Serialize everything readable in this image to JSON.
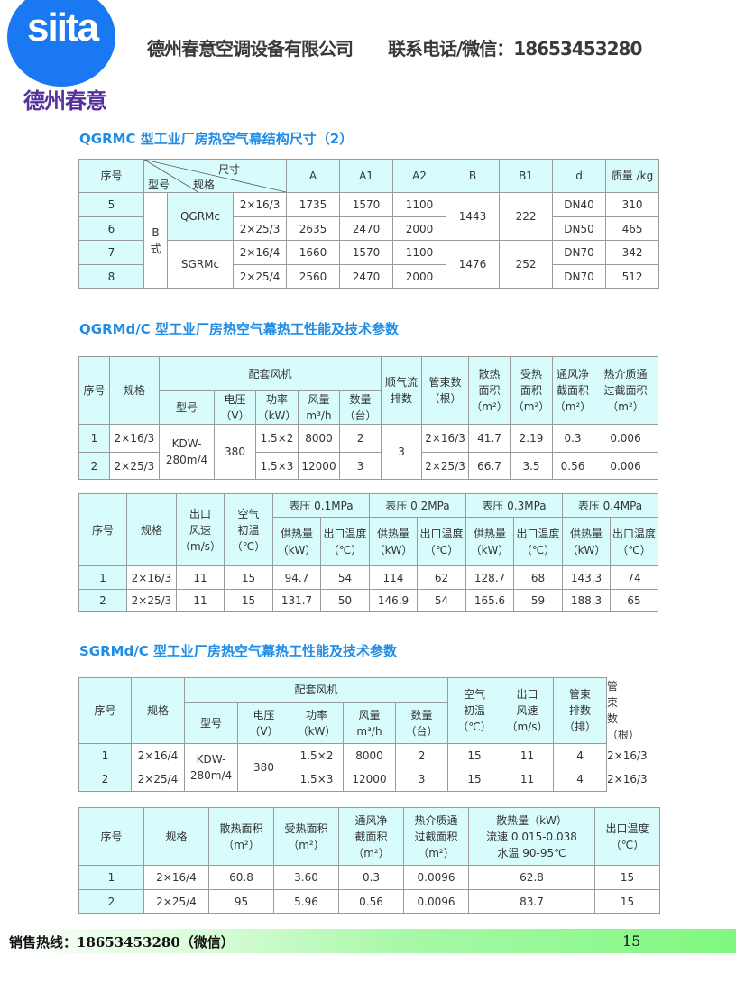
{
  "header": {
    "logo_text": "siita",
    "logo_subtitle": "德州春意",
    "company": "德州春意空调设备有限公司",
    "contact": "联系电话/微信：18653453280",
    "brand_color": "#1a78f2"
  },
  "sections": [
    {
      "title": "QGRMC 型工业厂房热空气幕结构尺寸（2）"
    },
    {
      "title": "QGRMd/C 型工业厂房热空气幕热工性能及技术参数"
    },
    {
      "title": "SGRMd/C 型工业厂房热空气幕热工性能及技术参数"
    }
  ],
  "tables": [
    {
      "rows": [
        [
          {
            "t": "序号",
            "h": 1
          },
          {
            "diag": [
              "尺寸",
              "型号",
              "规格"
            ],
            "cs": 3,
            "h": 1
          },
          {
            "t": "A",
            "h": 1
          },
          {
            "t": "A1",
            "h": 1
          },
          {
            "t": "A2",
            "h": 1
          },
          {
            "t": "B",
            "h": 1
          },
          {
            "t": "B1",
            "h": 1
          },
          {
            "t": "d",
            "h": 1
          },
          {
            "t": "质量 /kg",
            "h": 1
          }
        ],
        [
          {
            "t": "5",
            "c": 1
          },
          {
            "t": "B\n式",
            "rs": 4
          },
          {
            "t": "QGRMc",
            "rs": 2,
            "c": 1
          },
          {
            "t": "2×16/3"
          },
          {
            "t": "1735"
          },
          {
            "t": "1570"
          },
          {
            "t": "1100"
          },
          {
            "t": "1443",
            "rs": 2
          },
          {
            "t": "222",
            "rs": 2
          },
          {
            "t": "DN40"
          },
          {
            "t": "310"
          }
        ],
        [
          {
            "t": "6",
            "c": 1
          },
          {
            "t": "2×25/3"
          },
          {
            "t": "2635"
          },
          {
            "t": "2470"
          },
          {
            "t": "2000"
          },
          {
            "t": "DN50"
          },
          {
            "t": "465"
          }
        ],
        [
          {
            "t": "7",
            "c": 1
          },
          {
            "t": "SGRMc",
            "rs": 2
          },
          {
            "t": "2×16/4"
          },
          {
            "t": "1660"
          },
          {
            "t": "1570"
          },
          {
            "t": "1100"
          },
          {
            "t": "1476",
            "rs": 2
          },
          {
            "t": "252",
            "rs": 2
          },
          {
            "t": "DN70"
          },
          {
            "t": "342"
          }
        ],
        [
          {
            "t": "8",
            "c": 1
          },
          {
            "t": "2×25/4"
          },
          {
            "t": "2560"
          },
          {
            "t": "2470"
          },
          {
            "t": "2000"
          },
          {
            "t": "DN70"
          },
          {
            "t": "512"
          }
        ]
      ]
    },
    {
      "rows": [
        [
          {
            "t": "序号",
            "rs": 2,
            "h": 1
          },
          {
            "t": "规格",
            "rs": 2,
            "h": 1
          },
          {
            "t": "配套风机",
            "cs": 5,
            "h": 1
          },
          {
            "t": "顺气流\n排数",
            "rs": 2,
            "h": 1
          },
          {
            "t": "管束数\n（根）",
            "rs": 2,
            "h": 1
          },
          {
            "t": "散热\n面积\n（m²）",
            "rs": 2,
            "h": 1
          },
          {
            "t": "受热\n面积\n（m²）",
            "rs": 2,
            "h": 1
          },
          {
            "t": "通风净\n截面积\n（m²）",
            "rs": 2,
            "h": 1
          },
          {
            "t": "热介质通\n过截面积\n（m²）",
            "rs": 2,
            "h": 1
          }
        ],
        [
          {
            "t": "型号",
            "h": 1
          },
          {
            "t": "电压\n（V）",
            "h": 1
          },
          {
            "t": "功率\n（kW）",
            "h": 1
          },
          {
            "t": "风量\nm³/h",
            "h": 1
          },
          {
            "t": "数量\n（台）",
            "h": 1
          }
        ],
        [
          {
            "t": "1",
            "c": 1
          },
          {
            "t": "2×16/3"
          },
          {
            "t": "KDW-\n280m/4",
            "rs": 2
          },
          {
            "t": "380",
            "rs": 2
          },
          {
            "t": "1.5×2"
          },
          {
            "t": "8000"
          },
          {
            "t": "2"
          },
          {
            "t": "3",
            "rs": 2
          },
          {
            "t": "2×16/3"
          },
          {
            "t": "41.7"
          },
          {
            "t": "2.19"
          },
          {
            "t": "0.3"
          },
          {
            "t": "0.006"
          }
        ],
        [
          {
            "t": "2",
            "c": 1
          },
          {
            "t": "2×25/3"
          },
          {
            "t": "1.5×3"
          },
          {
            "t": "12000"
          },
          {
            "t": "3"
          },
          {
            "t": "2×25/3"
          },
          {
            "t": "66.7"
          },
          {
            "t": "3.5"
          },
          {
            "t": "0.56"
          },
          {
            "t": "0.006"
          }
        ]
      ]
    },
    {
      "rows": [
        [
          {
            "t": "序号",
            "rs": 2,
            "h": 1
          },
          {
            "t": "规格",
            "rs": 2,
            "h": 1
          },
          {
            "t": "出口\n风速\n（m/s）",
            "rs": 2,
            "h": 1
          },
          {
            "t": "空气\n初温\n（℃）",
            "rs": 2,
            "h": 1
          },
          {
            "t": "表压 0.1MPa",
            "cs": 2,
            "h": 1
          },
          {
            "t": "表压 0.2MPa",
            "cs": 2,
            "h": 1
          },
          {
            "t": "表压 0.3MPa",
            "cs": 2,
            "h": 1
          },
          {
            "t": "表压 0.4MPa",
            "cs": 2,
            "h": 1
          }
        ],
        [
          {
            "t": "供热量\n（kW）",
            "h": 1
          },
          {
            "t": "出口温度\n（℃）",
            "h": 1
          },
          {
            "t": "供热量\n（kW）",
            "h": 1
          },
          {
            "t": "出口温度\n（℃）",
            "h": 1
          },
          {
            "t": "供热量\n（kW）",
            "h": 1
          },
          {
            "t": "出口温度\n（℃）",
            "h": 1
          },
          {
            "t": "供热量\n（kW）",
            "h": 1
          },
          {
            "t": "出口温度\n（℃）",
            "h": 1
          }
        ],
        [
          {
            "t": "1",
            "c": 1
          },
          {
            "t": "2×16/3"
          },
          {
            "t": "11"
          },
          {
            "t": "15"
          },
          {
            "t": "94.7"
          },
          {
            "t": "54"
          },
          {
            "t": "114"
          },
          {
            "t": "62"
          },
          {
            "t": "128.7"
          },
          {
            "t": "68"
          },
          {
            "t": "143.3"
          },
          {
            "t": "74"
          }
        ],
        [
          {
            "t": "2",
            "c": 1
          },
          {
            "t": "2×25/3"
          },
          {
            "t": "11"
          },
          {
            "t": "15"
          },
          {
            "t": "131.7"
          },
          {
            "t": "50"
          },
          {
            "t": "146.9"
          },
          {
            "t": "54"
          },
          {
            "t": "165.6"
          },
          {
            "t": "59"
          },
          {
            "t": "188.3"
          },
          {
            "t": "65"
          }
        ]
      ]
    },
    {
      "rows": [
        [
          {
            "t": "序号",
            "rs": 2,
            "h": 1
          },
          {
            "t": "规格",
            "rs": 2,
            "h": 1
          },
          {
            "t": "配套风机",
            "cs": 5,
            "h": 1
          },
          {
            "t": "空气\n初温\n（℃）",
            "rs": 2,
            "h": 1
          },
          {
            "t": "出口\n风速\n（m/s）",
            "rs": 2,
            "h": 1
          },
          {
            "t": "管束\n排数\n（排）",
            "rs": 2,
            "h": 1
          },
          {
            "t": "管束数\n（根）",
            "rs": 2,
            "h": 1
          }
        ],
        [
          {
            "t": "型号",
            "h": 1
          },
          {
            "t": "电压\n（V）",
            "h": 1
          },
          {
            "t": "功率\n（kW）",
            "h": 1
          },
          {
            "t": "风量\nm³/h",
            "h": 1
          },
          {
            "t": "数量\n（台）",
            "h": 1
          }
        ],
        [
          {
            "t": "1",
            "c": 1
          },
          {
            "t": "2×16/4"
          },
          {
            "t": "KDW-\n280m/4",
            "rs": 2
          },
          {
            "t": "380",
            "rs": 2
          },
          {
            "t": "1.5×2"
          },
          {
            "t": "8000"
          },
          {
            "t": "2"
          },
          {
            "t": "15"
          },
          {
            "t": "11"
          },
          {
            "t": "4"
          },
          {
            "t": "2×16/3"
          }
        ],
        [
          {
            "t": "2",
            "c": 1
          },
          {
            "t": "2×25/4"
          },
          {
            "t": "1.5×3"
          },
          {
            "t": "12000"
          },
          {
            "t": "3"
          },
          {
            "t": "15"
          },
          {
            "t": "11"
          },
          {
            "t": "4"
          },
          {
            "t": "2×16/3"
          }
        ]
      ]
    },
    {
      "rows": [
        [
          {
            "t": "序号",
            "h": 1
          },
          {
            "t": "规格",
            "h": 1
          },
          {
            "t": "散热面积\n（m²）",
            "h": 1
          },
          {
            "t": "受热面积\n（m²）",
            "h": 1
          },
          {
            "t": "通风净\n截面积\n（m²）",
            "h": 1
          },
          {
            "t": "热介质通\n过截面积\n（m²）",
            "h": 1
          },
          {
            "t": "散热量（kW）\n流速 0.015-0.038\n水温 90-95℃",
            "h": 1
          },
          {
            "t": "出口温度\n（℃）",
            "h": 1
          }
        ],
        [
          {
            "t": "1",
            "c": 1
          },
          {
            "t": "2×16/4"
          },
          {
            "t": "60.8"
          },
          {
            "t": "3.60"
          },
          {
            "t": "0.3"
          },
          {
            "t": "0.0096"
          },
          {
            "t": "62.8"
          },
          {
            "t": "15"
          }
        ],
        [
          {
            "t": "2",
            "c": 1
          },
          {
            "t": "2×25/4"
          },
          {
            "t": "95"
          },
          {
            "t": "5.96"
          },
          {
            "t": "0.56"
          },
          {
            "t": "0.0096"
          },
          {
            "t": "83.7"
          },
          {
            "t": "15"
          }
        ]
      ]
    }
  ],
  "footer": {
    "hotline": "销售热线：18653453280（微信）",
    "page_number": "15"
  }
}
